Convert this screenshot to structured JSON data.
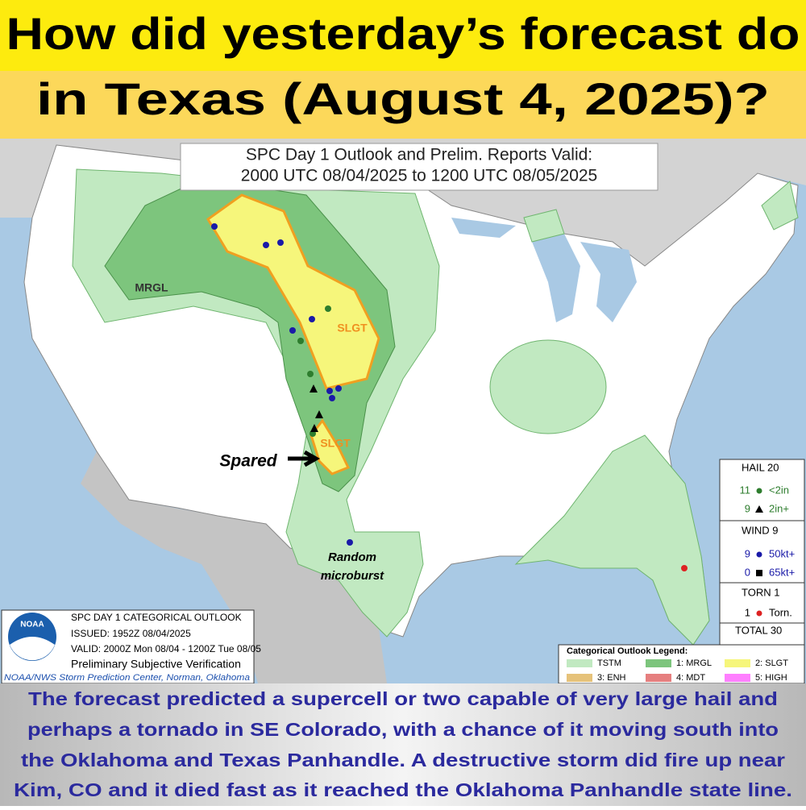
{
  "header": {
    "title_lines": [
      "How did yesterday’s forecast do",
      "in Texas (August 4, 2025)?"
    ]
  },
  "map": {
    "title_lines": [
      "SPC Day 1 Outlook and Prelim. Reports Valid:",
      "2000 UTC 08/04/2025 to 1200 UTC 08/05/2025"
    ],
    "labels": {
      "mrgl": "MRGL",
      "slgt_north": "SLGT",
      "slgt_south": "SLGT",
      "spared": "Spared",
      "microburst": [
        "Random",
        "microburst"
      ]
    }
  },
  "reports_legend": {
    "hail": {
      "heading": "HAIL 20",
      "rows": [
        {
          "count": 11,
          "label": "<2in"
        },
        {
          "count": 9,
          "label": "2in+"
        }
      ]
    },
    "wind": {
      "heading": "WIND 9",
      "rows": [
        {
          "count": 9,
          "label": "50kt+"
        },
        {
          "count": 0,
          "label": "65kt+"
        }
      ]
    },
    "torn": {
      "heading": "TORN 1",
      "rows": [
        {
          "count": 1,
          "label": "Torn."
        }
      ]
    },
    "total": "TOTAL 30"
  },
  "info_box": {
    "logo": "NOAA",
    "lines": [
      "SPC DAY 1 CATEGORICAL OUTLOOK",
      "ISSUED: 1952Z 08/04/2025",
      "VALID: 2000Z Mon 08/04 - 1200Z Tue 08/05",
      "Preliminary Subjective Verification",
      "NOAA/NWS Storm Prediction Center, Norman, Oklahoma"
    ]
  },
  "category_legend": {
    "title": "Categorical Outlook Legend:",
    "items": [
      {
        "label": "TSTM",
        "color": "#c1e9c1"
      },
      {
        "label": "1: MRGL",
        "color": "#7dc57d"
      },
      {
        "label": "2: SLGT",
        "color": "#f6f67b"
      },
      {
        "label": "3: ENH",
        "color": "#e6c27a"
      },
      {
        "label": "4: MDT",
        "color": "#e67f7f"
      },
      {
        "label": "5: HIGH",
        "color": "#ff7fff"
      }
    ]
  },
  "caption": {
    "lines": [
      "The forecast predicted a supercell or two capable of very large hail and",
      "perhaps a tornado in SE Colorado, with a chance of it moving south into",
      "the Oklahoma and Texas Panhandle. A destructive storm did fire up near",
      "Kim, CO and it died fast as it reached the Oklahoma Panhandle state line."
    ]
  }
}
